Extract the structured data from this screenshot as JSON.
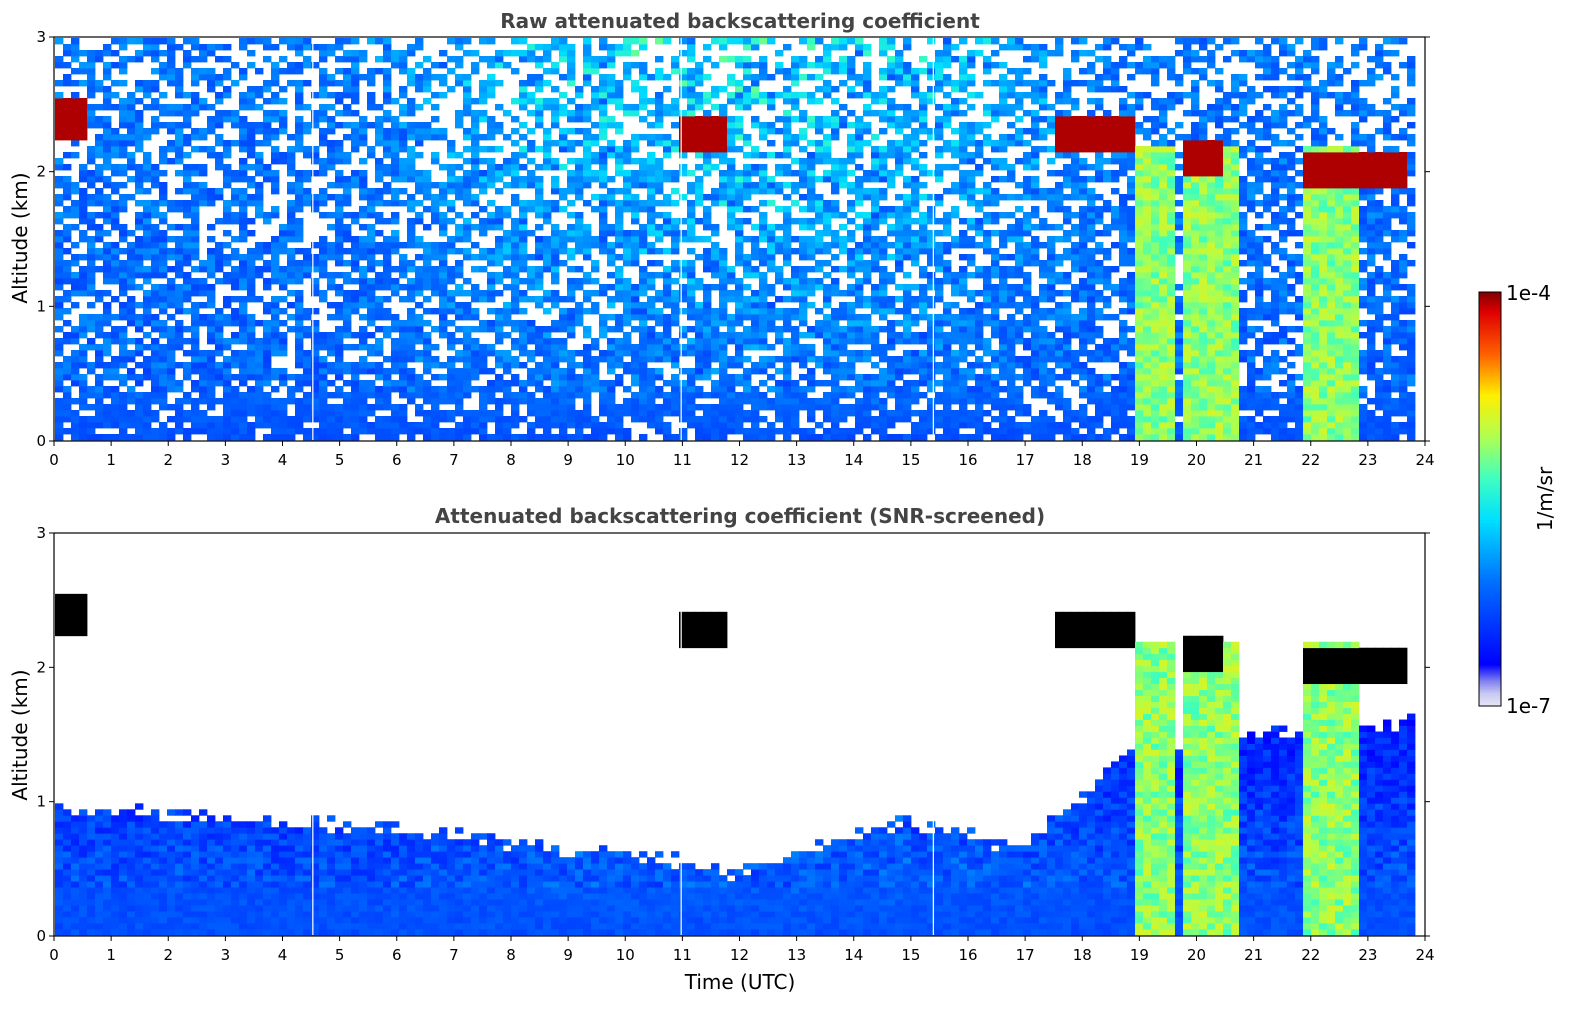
{
  "chart_data": [
    {
      "type": "heatmap",
      "title": "Raw attenuated backscattering coefficient",
      "ylabel": "Altitude (km)",
      "xlabel": "",
      "xlim": [
        0,
        24
      ],
      "ylim": [
        0,
        3
      ],
      "xticks": [
        "0",
        "1",
        "2",
        "3",
        "4",
        "5",
        "6",
        "7",
        "8",
        "9",
        "10",
        "11",
        "12",
        "13",
        "14",
        "15",
        "16",
        "17",
        "18",
        "19",
        "20",
        "21",
        "22",
        "23",
        "24"
      ],
      "yticks": [
        "0",
        "1",
        "2",
        "3"
      ],
      "screened": false,
      "data_gaps_utc": [
        4.55,
        11.05,
        15.5
      ],
      "cloud_layers": [
        {
          "t0": 0.0,
          "t1": 0.55,
          "alt_km": 2.4
        },
        {
          "t0": 11.0,
          "t1": 11.9,
          "alt_km": 2.3
        },
        {
          "t0": 17.6,
          "t1": 19.0,
          "alt_km": 2.3
        },
        {
          "t0": 19.9,
          "t1": 20.6,
          "alt_km": 2.1
        },
        {
          "t0": 22.0,
          "t1": 23.8,
          "alt_km": 2.0
        }
      ],
      "precip_columns": [
        {
          "t0": 19.0,
          "t1": 19.8
        },
        {
          "t0": 19.9,
          "t1": 20.9
        },
        {
          "t0": 22.0,
          "t1": 23.0
        }
      ]
    },
    {
      "type": "heatmap",
      "title": "Attenuated backscattering coefficient (SNR-screened)",
      "ylabel": "Altitude (km)",
      "xlabel": "Time (UTC)",
      "xlim": [
        0,
        24
      ],
      "ylim": [
        0,
        3
      ],
      "xticks": [
        "0",
        "1",
        "2",
        "3",
        "4",
        "5",
        "6",
        "7",
        "8",
        "9",
        "10",
        "11",
        "12",
        "13",
        "14",
        "15",
        "16",
        "17",
        "18",
        "19",
        "20",
        "21",
        "22",
        "23",
        "24"
      ],
      "yticks": [
        "0",
        "1",
        "2",
        "3"
      ],
      "screened": true,
      "data_gaps_utc": [
        4.55,
        11.05,
        15.5
      ],
      "boundary_layer_top_km": [
        [
          0,
          0.95
        ],
        [
          2,
          0.9
        ],
        [
          4,
          0.85
        ],
        [
          6,
          0.8
        ],
        [
          8,
          0.7
        ],
        [
          10,
          0.6
        ],
        [
          11,
          0.55
        ],
        [
          12,
          0.45
        ],
        [
          13,
          0.6
        ],
        [
          14,
          0.75
        ],
        [
          15,
          0.85
        ],
        [
          16,
          0.75
        ],
        [
          17,
          0.65
        ],
        [
          18,
          1.0
        ],
        [
          19,
          1.4
        ],
        [
          24,
          1.6
        ]
      ]
    }
  ],
  "colorbar": {
    "label": "1/m/sr",
    "max_label": "1e-4",
    "min_label": "1e-7",
    "scale": "log",
    "colormap": "jet",
    "range": [
      1e-07,
      0.0001
    ]
  }
}
